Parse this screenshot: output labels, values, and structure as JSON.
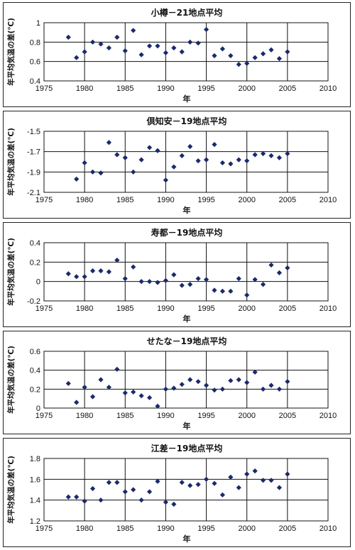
{
  "chart_data": [
    {
      "type": "scatter",
      "title": "小樽－21地点平均",
      "xlabel": "年",
      "ylabel": "年平均気温の差(℃)",
      "xlim": [
        1975,
        2010
      ],
      "ylim": [
        0.4,
        1.0
      ],
      "xticks": [
        "1975",
        "1980",
        "1985",
        "1990",
        "1995",
        "2000",
        "2005",
        "2010"
      ],
      "yticks": [
        "0.4",
        "0.6",
        "0.8",
        "1"
      ],
      "grid": true,
      "series": [
        {
          "x": [
            1978,
            1979,
            1980,
            1981,
            1982,
            1983,
            1984,
            1985,
            1986,
            1987,
            1988,
            1989,
            1990,
            1991,
            1992,
            1993,
            1994,
            1995,
            1996,
            1997,
            1998,
            1999,
            2000,
            2001,
            2002,
            2003,
            2004,
            2005
          ],
          "y": [
            0.85,
            0.64,
            0.7,
            0.8,
            0.78,
            0.74,
            0.85,
            0.71,
            0.92,
            0.67,
            0.76,
            0.76,
            0.69,
            0.74,
            0.7,
            0.8,
            0.79,
            0.93,
            0.66,
            0.73,
            0.66,
            0.57,
            0.58,
            0.64,
            0.68,
            0.72,
            0.63,
            0.7
          ]
        }
      ],
      "color": "#1a2a6c"
    },
    {
      "type": "scatter",
      "title": "倶知安－19地点平均",
      "xlabel": "年",
      "ylabel": "年平均気温の差(℃)",
      "xlim": [
        1975,
        2010
      ],
      "ylim": [
        -2.1,
        -1.5
      ],
      "xticks": [
        "1975",
        "1980",
        "1985",
        "1990",
        "1995",
        "2000",
        "2005",
        "2010"
      ],
      "yticks": [
        "-2.1",
        "-1.9",
        "-1.7",
        "-1.5"
      ],
      "grid": true,
      "series": [
        {
          "x": [
            1979,
            1980,
            1981,
            1982,
            1983,
            1984,
            1985,
            1986,
            1987,
            1988,
            1989,
            1990,
            1991,
            1992,
            1993,
            1994,
            1995,
            1996,
            1997,
            1998,
            1999,
            2000,
            2001,
            2002,
            2003,
            2004,
            2005
          ],
          "y": [
            -1.97,
            -1.81,
            -1.9,
            -1.91,
            -1.61,
            -1.73,
            -1.76,
            -1.9,
            -1.78,
            -1.66,
            -1.69,
            -1.98,
            -1.85,
            -1.74,
            -1.65,
            -1.79,
            -1.78,
            -1.63,
            -1.81,
            -1.82,
            -1.78,
            -1.79,
            -1.73,
            -1.72,
            -1.74,
            -1.76,
            -1.72
          ]
        }
      ],
      "color": "#1a2a6c"
    },
    {
      "type": "scatter",
      "title": "寿都－19地点平均",
      "xlabel": "年",
      "ylabel": "年平均気温の差(℃)",
      "xlim": [
        1975,
        2010
      ],
      "ylim": [
        -0.2,
        0.4
      ],
      "xticks": [
        "1975",
        "1980",
        "1985",
        "1990",
        "1995",
        "2000",
        "2005",
        "2010"
      ],
      "yticks": [
        "-0.2",
        "0",
        "0.2",
        "0.4"
      ],
      "grid": true,
      "series": [
        {
          "x": [
            1978,
            1979,
            1980,
            1981,
            1982,
            1983,
            1984,
            1985,
            1986,
            1987,
            1988,
            1989,
            1990,
            1991,
            1992,
            1993,
            1994,
            1995,
            1996,
            1997,
            1998,
            1999,
            2000,
            2001,
            2002,
            2003,
            2004,
            2005
          ],
          "y": [
            0.08,
            0.05,
            0.05,
            0.11,
            0.11,
            0.1,
            0.22,
            0.03,
            0.15,
            0.0,
            0.0,
            -0.01,
            0.01,
            0.07,
            -0.04,
            -0.03,
            0.03,
            0.02,
            -0.09,
            -0.1,
            -0.1,
            0.03,
            -0.14,
            0.02,
            -0.03,
            0.17,
            0.09,
            0.14
          ]
        }
      ],
      "color": "#1a2a6c"
    },
    {
      "type": "scatter",
      "title": "せたな－19地点平均",
      "xlabel": "年",
      "ylabel": "年平均気温の差(℃)",
      "xlim": [
        1975,
        2010
      ],
      "ylim": [
        0,
        0.6
      ],
      "xticks": [
        "1975",
        "1980",
        "1985",
        "1990",
        "1995",
        "2000",
        "2005",
        "2010"
      ],
      "yticks": [
        "0",
        "0.2",
        "0.4",
        "0.6"
      ],
      "grid": true,
      "series": [
        {
          "x": [
            1978,
            1979,
            1980,
            1981,
            1982,
            1983,
            1984,
            1985,
            1986,
            1987,
            1988,
            1989,
            1990,
            1991,
            1992,
            1993,
            1994,
            1995,
            1996,
            1997,
            1998,
            1999,
            2000,
            2001,
            2002,
            2003,
            2004,
            2005
          ],
          "y": [
            0.26,
            0.06,
            0.22,
            0.12,
            0.3,
            0.22,
            0.41,
            0.16,
            0.17,
            0.13,
            0.11,
            0.02,
            0.2,
            0.21,
            0.25,
            0.3,
            0.28,
            0.24,
            0.19,
            0.2,
            0.29,
            0.3,
            0.27,
            0.38,
            0.2,
            0.24,
            0.2,
            0.28
          ]
        }
      ],
      "color": "#1a2a6c"
    },
    {
      "type": "scatter",
      "title": "江差－19地点平均",
      "xlabel": "年",
      "ylabel": "年平均気温の差(℃)",
      "xlim": [
        1975,
        2010
      ],
      "ylim": [
        1.2,
        1.8
      ],
      "xticks": [
        "1975",
        "1980",
        "1985",
        "1990",
        "1995",
        "2000",
        "2005",
        "2010"
      ],
      "yticks": [
        "1.2",
        "1.4",
        "1.6",
        "1.8"
      ],
      "grid": true,
      "series": [
        {
          "x": [
            1978,
            1979,
            1980,
            1981,
            1982,
            1983,
            1984,
            1985,
            1986,
            1987,
            1988,
            1989,
            1990,
            1991,
            1992,
            1993,
            1994,
            1995,
            1996,
            1997,
            1998,
            1999,
            2000,
            2001,
            2002,
            2003,
            2004,
            2005
          ],
          "y": [
            1.43,
            1.43,
            1.39,
            1.51,
            1.4,
            1.57,
            1.57,
            1.48,
            1.5,
            1.4,
            1.48,
            1.58,
            1.38,
            1.36,
            1.57,
            1.54,
            1.55,
            1.6,
            1.56,
            1.45,
            1.62,
            1.52,
            1.65,
            1.68,
            1.59,
            1.59,
            1.52,
            1.65
          ]
        }
      ],
      "color": "#1a2a6c"
    }
  ]
}
